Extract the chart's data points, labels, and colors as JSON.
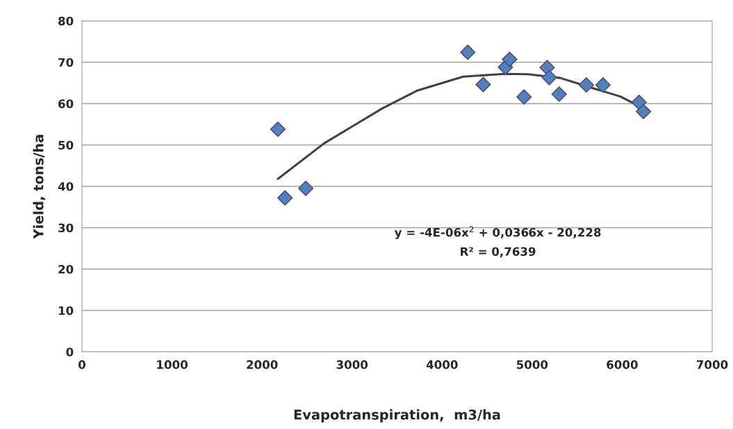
{
  "chart_data": {
    "type": "scatter",
    "xlabel": "Evapotranspiration,  m3/ha",
    "ylabel": "Yield, tons/ha",
    "series": [
      {
        "color": "#4f81bd",
        "marker": "diamond",
        "x": [
          2176,
          2255,
          2486,
          4285,
          4457,
          4704,
          4750,
          4910,
          5167,
          5191,
          5301,
          5602,
          5787,
          6188,
          6237
        ],
        "values": [
          53.8,
          37.2,
          39.5,
          72.4,
          64.6,
          68.8,
          70.7,
          61.6,
          68.7,
          66.3,
          62.3,
          64.5,
          64.5,
          60.3,
          58.1
        ]
      },
      {
        "type": "line",
        "color": "#404040",
        "marker": "none",
        "line_style": "solid",
        "x": [
          2176,
          2690,
          3333,
          3719,
          4233,
          4696,
          4954,
          5313,
          5648,
          5982,
          6239
        ],
        "values": [
          41.8,
          50.4,
          58.8,
          63.1,
          66.5,
          67.2,
          67.1,
          66.2,
          63.9,
          61.7,
          58.8
        ]
      }
    ],
    "annotations": [
      "y = -4E-06x$^{2}$ + 0,0366x - 20,228",
      "R² = 0,7639"
    ],
    "xlim": [
      0,
      7000
    ],
    "xticks": [
      0,
      1000,
      2000,
      3000,
      4000,
      5000,
      6000,
      7000
    ],
    "ylim": [
      0,
      80
    ],
    "yticks": [
      0,
      10,
      20,
      30,
      40,
      50,
      60,
      70,
      80
    ],
    "grid": "y",
    "legend": false
  }
}
